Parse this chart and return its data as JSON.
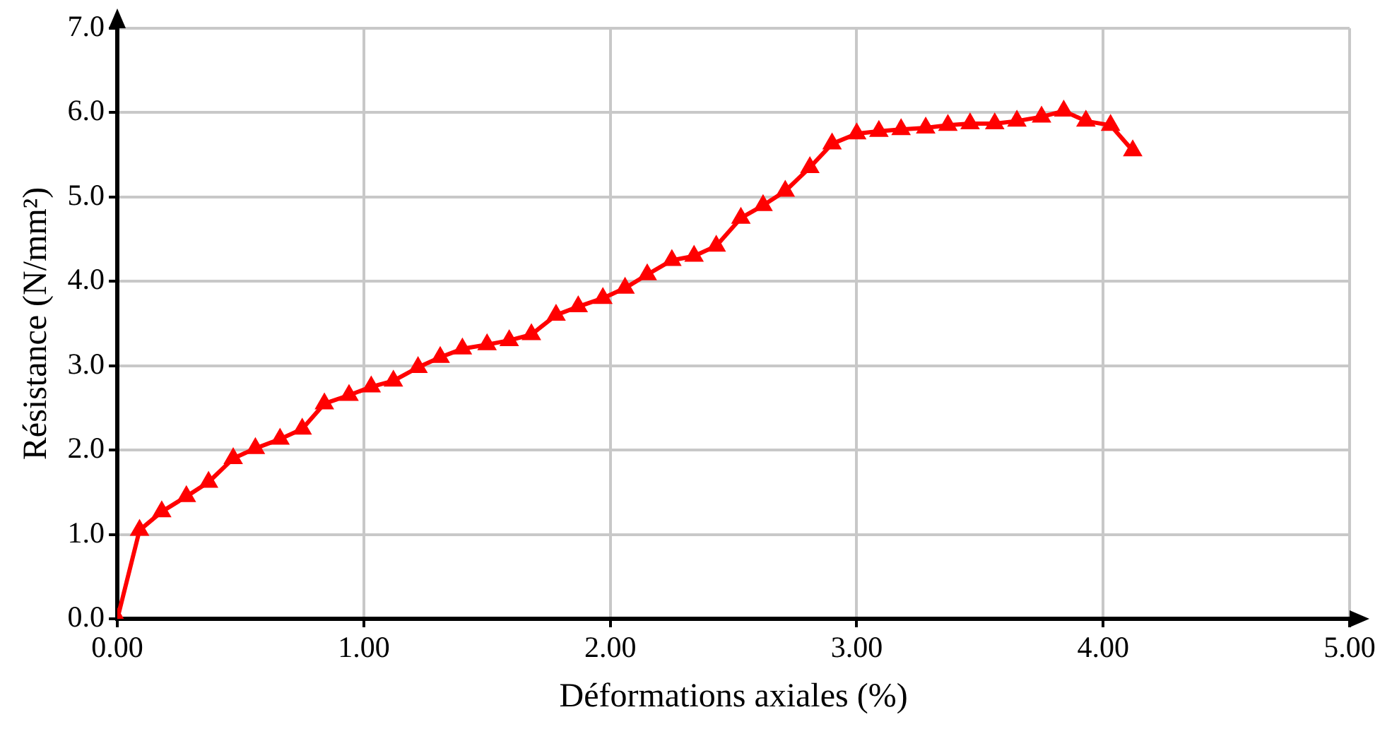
{
  "chart_data": {
    "type": "line",
    "xlabel": "Déformations axiales (%)",
    "ylabel": "Résistance (N/mm²)",
    "x": [
      0,
      0.09,
      0.18,
      0.28,
      0.37,
      0.47,
      0.56,
      0.66,
      0.75,
      0.84,
      0.94,
      1.03,
      1.12,
      1.22,
      1.31,
      1.4,
      1.5,
      1.59,
      1.68,
      1.78,
      1.87,
      1.97,
      2.06,
      2.15,
      2.25,
      2.34,
      2.43,
      2.53,
      2.62,
      2.71,
      2.81,
      2.9,
      3.0,
      3.09,
      3.18,
      3.28,
      3.37,
      3.46,
      3.56,
      3.65,
      3.75,
      3.84,
      3.93,
      4.03,
      4.12
    ],
    "series": [
      {
        "color": "#ff0000",
        "values": [
          0,
          1.05,
          1.27,
          1.45,
          1.62,
          1.9,
          2.02,
          2.13,
          2.25,
          2.55,
          2.65,
          2.75,
          2.82,
          2.98,
          3.1,
          3.2,
          3.25,
          3.3,
          3.37,
          3.6,
          3.7,
          3.8,
          3.92,
          4.08,
          4.25,
          4.3,
          4.42,
          4.75,
          4.9,
          5.07,
          5.35,
          5.63,
          5.75,
          5.78,
          5.8,
          5.82,
          5.85,
          5.87,
          5.87,
          5.9,
          5.95,
          6.02,
          5.9,
          5.85,
          5.55
        ]
      }
    ],
    "xlim": [
      0,
      5
    ],
    "xticks": [
      {
        "value": 0,
        "label": "0.00"
      },
      {
        "value": 1,
        "label": "1.00"
      },
      {
        "value": 2,
        "label": "2.00"
      },
      {
        "value": 3,
        "label": "3.00"
      },
      {
        "value": 4,
        "label": "4.00"
      },
      {
        "value": 5,
        "label": "5.00"
      }
    ],
    "ylim": [
      0,
      7
    ],
    "yticks": [
      {
        "value": 0,
        "label": "0.0"
      },
      {
        "value": 1,
        "label": "1.0"
      },
      {
        "value": 2,
        "label": "2.0"
      },
      {
        "value": 3,
        "label": "3.0"
      },
      {
        "value": 4,
        "label": "4.0"
      },
      {
        "value": 5,
        "label": "5.0"
      },
      {
        "value": 6,
        "label": "6.0"
      },
      {
        "value": 7,
        "label": "7.0"
      }
    ],
    "grid": true,
    "legend": false,
    "marker": "triangle",
    "line_style": "solid"
  }
}
